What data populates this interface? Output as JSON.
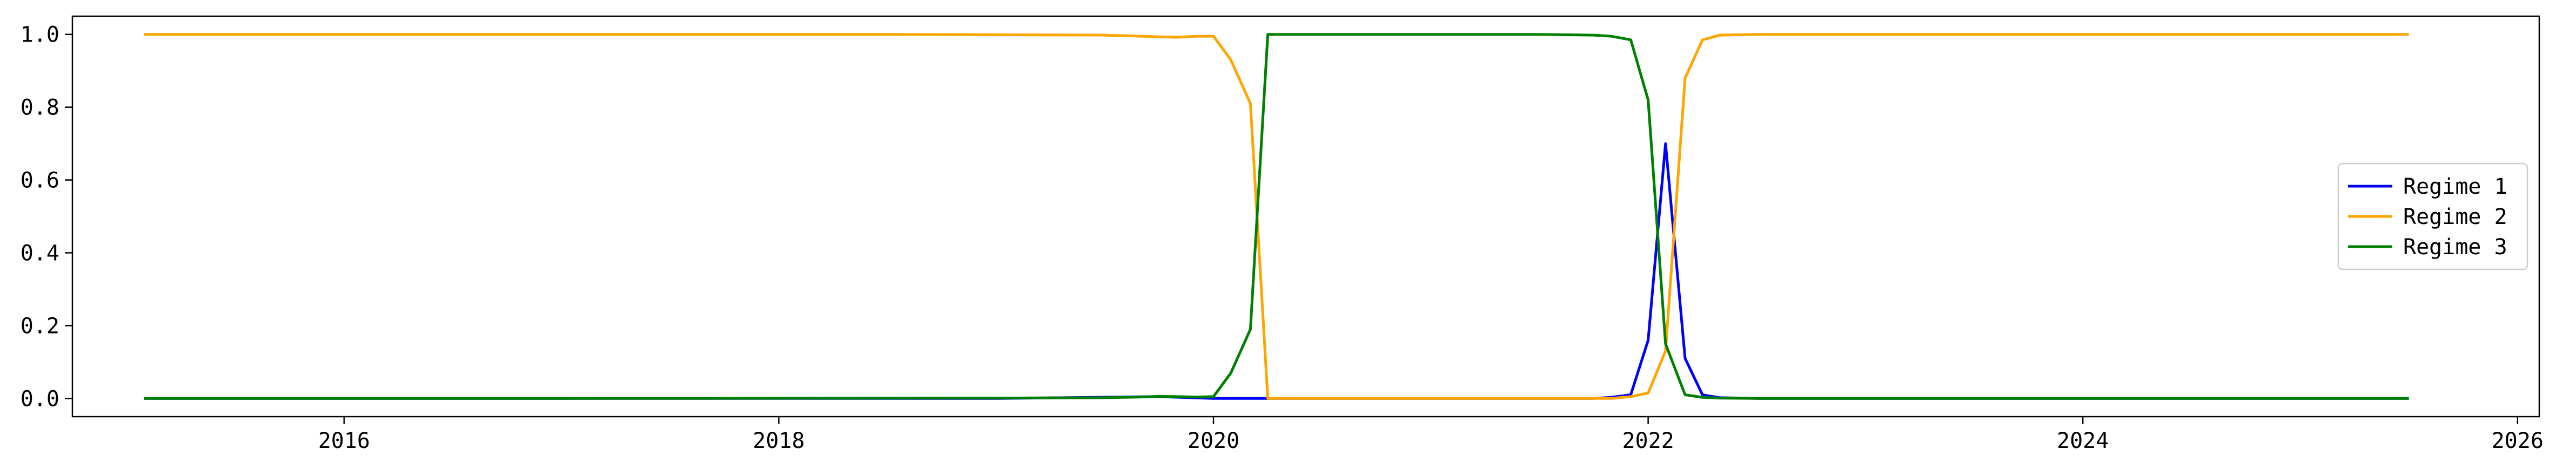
{
  "chart_data": {
    "type": "line",
    "x_range": [
      2014.75,
      2026.1
    ],
    "ylim": [
      -0.05,
      1.05
    ],
    "x_ticks": [
      2016,
      2018,
      2020,
      2022,
      2024,
      2026
    ],
    "x_tick_labels": [
      "2016",
      "2018",
      "2020",
      "2022",
      "2024",
      "2026"
    ],
    "y_ticks": [
      0.0,
      0.2,
      0.4,
      0.6,
      0.8,
      1.0
    ],
    "y_tick_labels": [
      "0.0",
      "0.2",
      "0.4",
      "0.6",
      "0.8",
      "1.0"
    ],
    "grid": false,
    "legend_position": "center-right",
    "series": [
      {
        "name": "Regime 1",
        "color": "#0000ff",
        "points": [
          [
            2015.08,
            0
          ],
          [
            2017.0,
            0
          ],
          [
            2019.0,
            0
          ],
          [
            2019.75,
            0.005
          ],
          [
            2020.0,
            0
          ],
          [
            2020.25,
            0
          ],
          [
            2021.0,
            0
          ],
          [
            2021.75,
            0
          ],
          [
            2021.83,
            0.003
          ],
          [
            2021.92,
            0.01
          ],
          [
            2022.0,
            0.16
          ],
          [
            2022.08,
            0.7
          ],
          [
            2022.17,
            0.11
          ],
          [
            2022.25,
            0.01
          ],
          [
            2022.33,
            0.002
          ],
          [
            2022.5,
            0
          ],
          [
            2023.0,
            0
          ],
          [
            2024.0,
            0
          ],
          [
            2025.5,
            0
          ]
        ]
      },
      {
        "name": "Regime 2",
        "color": "#ffa500",
        "points": [
          [
            2015.08,
            1.0
          ],
          [
            2017.0,
            1.0
          ],
          [
            2018.5,
            1.0
          ],
          [
            2019.0,
            0.999
          ],
          [
            2019.5,
            0.998
          ],
          [
            2019.67,
            0.995
          ],
          [
            2019.83,
            0.992
          ],
          [
            2019.92,
            0.995
          ],
          [
            2020.0,
            0.995
          ],
          [
            2020.08,
            0.93
          ],
          [
            2020.17,
            0.81
          ],
          [
            2020.25,
            0
          ],
          [
            2020.5,
            0
          ],
          [
            2021.0,
            0
          ],
          [
            2021.5,
            0
          ],
          [
            2021.83,
            0.0
          ],
          [
            2021.92,
            0.005
          ],
          [
            2022.0,
            0.015
          ],
          [
            2022.08,
            0.13
          ],
          [
            2022.17,
            0.88
          ],
          [
            2022.25,
            0.985
          ],
          [
            2022.33,
            0.998
          ],
          [
            2022.5,
            1.0
          ],
          [
            2023.0,
            1.0
          ],
          [
            2024.0,
            1.0
          ],
          [
            2025.5,
            1.0
          ]
        ]
      },
      {
        "name": "Regime 3",
        "color": "#008000",
        "points": [
          [
            2015.08,
            0
          ],
          [
            2017.0,
            0
          ],
          [
            2019.0,
            0.001
          ],
          [
            2019.5,
            0.002
          ],
          [
            2019.67,
            0.004
          ],
          [
            2019.75,
            0.006
          ],
          [
            2019.83,
            0.005
          ],
          [
            2019.92,
            0.004
          ],
          [
            2020.0,
            0.005
          ],
          [
            2020.08,
            0.07
          ],
          [
            2020.17,
            0.19
          ],
          [
            2020.25,
            1.0
          ],
          [
            2020.5,
            1.0
          ],
          [
            2021.0,
            1.0
          ],
          [
            2021.5,
            1.0
          ],
          [
            2021.75,
            0.998
          ],
          [
            2021.83,
            0.995
          ],
          [
            2021.92,
            0.985
          ],
          [
            2022.0,
            0.82
          ],
          [
            2022.08,
            0.15
          ],
          [
            2022.17,
            0.01
          ],
          [
            2022.25,
            0.003
          ],
          [
            2022.33,
            0.001
          ],
          [
            2022.5,
            0
          ],
          [
            2023.0,
            0
          ],
          [
            2024.0,
            0
          ],
          [
            2025.5,
            0
          ]
        ]
      }
    ]
  }
}
